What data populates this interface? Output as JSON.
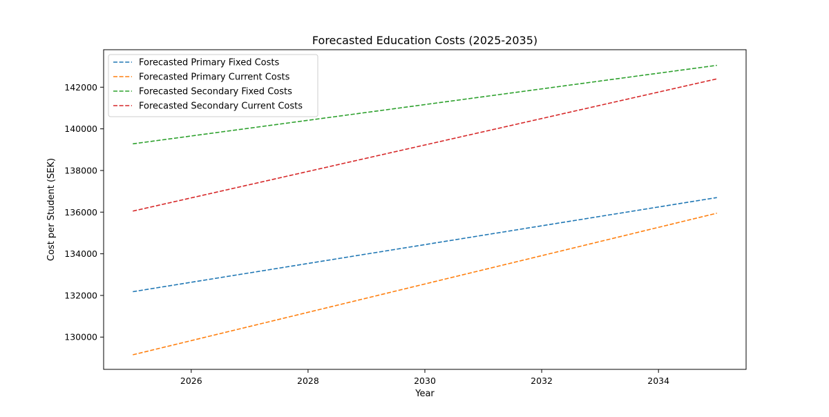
{
  "chart_data": {
    "type": "line",
    "title": "Forecasted Education Costs (2025-2035)",
    "xlabel": "Year",
    "ylabel": "Cost per Student (SEK)",
    "xlim": [
      2024.5,
      2035.5
    ],
    "ylim": [
      128450,
      143800
    ],
    "xticks": [
      2026,
      2028,
      2030,
      2032,
      2034
    ],
    "yticks": [
      130000,
      132000,
      134000,
      136000,
      138000,
      140000,
      142000
    ],
    "grid": false,
    "legend_position": "top-left",
    "line_style": "dashed",
    "series": [
      {
        "name": "Forecasted Primary Fixed Costs",
        "color": "#1f77b4",
        "points": [
          [
            2025,
            132180
          ],
          [
            2035,
            136700
          ]
        ]
      },
      {
        "name": "Forecasted Primary Current Costs",
        "color": "#ff7f0e",
        "points": [
          [
            2025,
            129150
          ],
          [
            2035,
            135950
          ]
        ]
      },
      {
        "name": "Forecasted Secondary Fixed Costs",
        "color": "#2ca02c",
        "points": [
          [
            2025,
            139280
          ],
          [
            2035,
            143050
          ]
        ]
      },
      {
        "name": "Forecasted Secondary Current Costs",
        "color": "#d62728",
        "points": [
          [
            2025,
            136050
          ],
          [
            2035,
            142400
          ]
        ]
      }
    ]
  }
}
